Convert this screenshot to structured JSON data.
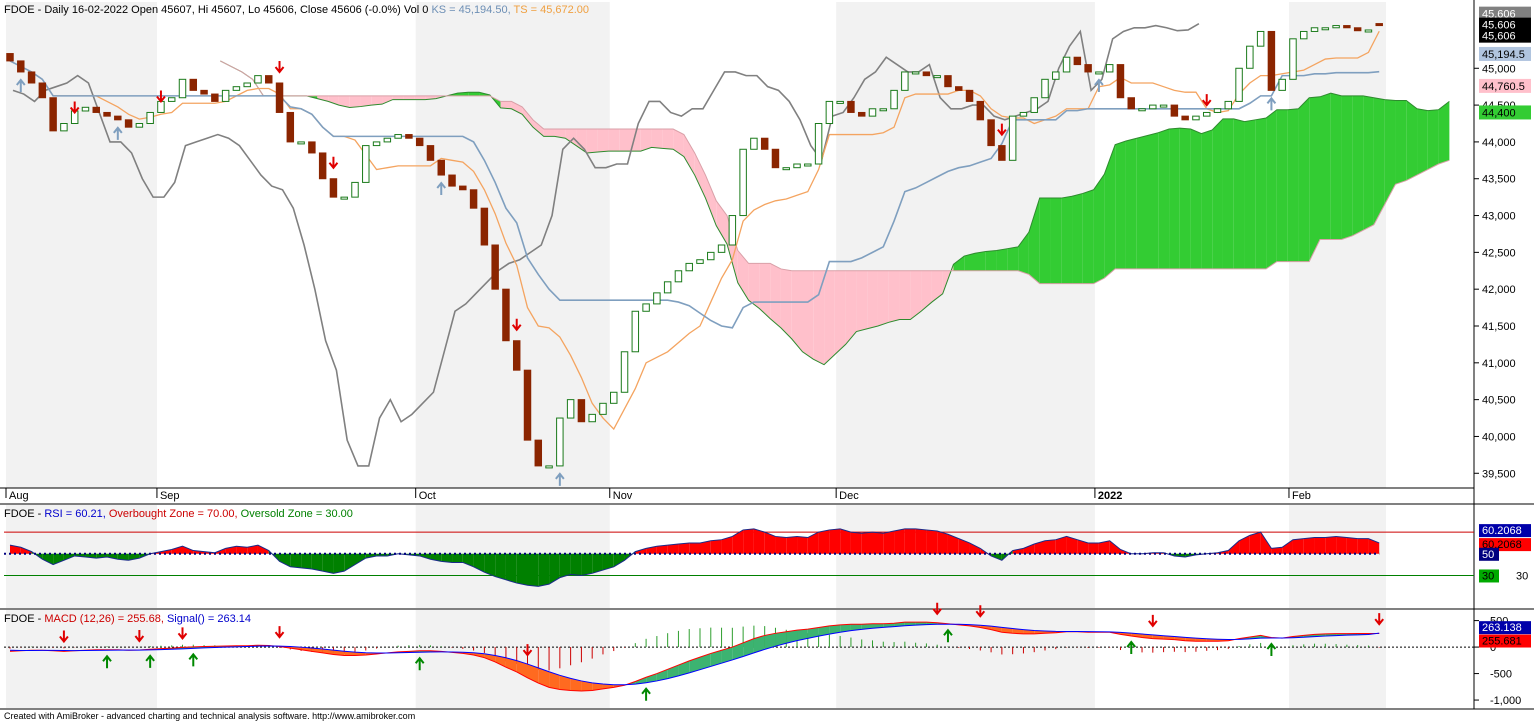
{
  "header": {
    "main": "FDOE - Daily 16-02-2022 Open 45607, Hi 45607, Lo 45606, Close 45606 (-0.0%) Vol 0",
    "ks": "KS = 45,194.50,",
    "ts": "TS = 45,672.00"
  },
  "rsi_header": {
    "prefix": "FDOE - ",
    "rsi": "RSI = 60.21,",
    "overbought": "Overbought Zone = 70.00,",
    "oversold": "Oversold Zone = 30.00"
  },
  "macd_header": {
    "prefix": "FDOE - ",
    "macd": "MACD (12,26) = 255.68,",
    "signal": "Signal() = 263.14"
  },
  "credit": "Created with AmiBroker - advanced charting and technical analysis software. http://www.amibroker.com",
  "colors": {
    "up_candle": "#ffffff",
    "down_candle": "#8b2500",
    "kumo_bull": "#33cc33",
    "kumo_bear": "#ffc0cb",
    "kijun": "#7f9fbf",
    "tenkan": "#f4a460",
    "chikou": "#808080",
    "rsi_fill_up": "#ff0000",
    "rsi_fill_down": "#008000",
    "macd_line": "#ff0000",
    "signal_line": "#0000ff"
  },
  "price_badges": [
    {
      "text": "45,606",
      "bg": "#808080"
    },
    {
      "text": "45,606",
      "bg": "#000000"
    },
    {
      "text": "45,606",
      "bg": "#000000"
    },
    {
      "text": "45,194.5",
      "bg": "#b0c4de"
    },
    {
      "text": "44,760.5",
      "bg": "#ffc0cb"
    },
    {
      "text": "44,400",
      "bg": "#33cc33"
    }
  ],
  "rsi_badges": [
    {
      "text": "60.2068",
      "bg": "#0000aa",
      "fg": "#ffffff"
    },
    {
      "text": "60.2068",
      "bg": "#ff0000",
      "fg": "#000000"
    },
    {
      "text": "50",
      "bg": "#000080",
      "fg": "#ffffff"
    },
    {
      "text": "30",
      "bg": "#00aa00",
      "fg": "#000000"
    }
  ],
  "macd_badges": [
    {
      "text": "263.138",
      "bg": "#0000aa",
      "fg": "#ffffff"
    },
    {
      "text": "255.681",
      "bg": "#ff0000",
      "fg": "#000000"
    }
  ],
  "chart_data": [
    {
      "type": "candlestick",
      "title": "FDOE - Daily 16-02-2022",
      "y_axis_ticks": [
        45000,
        44500,
        44000,
        43500,
        43000,
        42500,
        42000,
        41500,
        41000,
        40500,
        40000,
        39500
      ],
      "ylim": [
        39300,
        45900
      ],
      "x_axis_labels": [
        "Aug",
        "Sep",
        "Oct",
        "Nov",
        "Dec",
        "2022",
        "Feb"
      ],
      "close_series": [
        45100,
        44950,
        44800,
        44600,
        44150,
        44250,
        44420,
        44470,
        44400,
        44350,
        44300,
        44200,
        44250,
        44400,
        44550,
        44600,
        44850,
        44700,
        44650,
        44550,
        44700,
        44750,
        44800,
        44900,
        44800,
        44400,
        44000,
        44000,
        43850,
        43500,
        43250,
        43250,
        43450,
        43950,
        44000,
        44050,
        44100,
        44050,
        43950,
        43750,
        43550,
        43400,
        43350,
        43100,
        42600,
        42000,
        41300,
        40900,
        39950,
        39600,
        39600,
        40250,
        40500,
        40200,
        40300,
        40450,
        40600,
        41150,
        41700,
        41800,
        41950,
        42100,
        42250,
        42350,
        42400,
        42500,
        42600,
        43000,
        43900,
        44050,
        43900,
        43650,
        43650,
        43700,
        43700,
        44250,
        44550,
        44550,
        44400,
        44350,
        44450,
        44450,
        44700,
        44950,
        44950,
        44900,
        44900,
        44750,
        44700,
        44550,
        44300,
        43950,
        43750,
        44350,
        44400,
        44600,
        44850,
        44950,
        45150,
        45050,
        44950,
        44950,
        45050,
        44600,
        44450,
        44450,
        44500,
        44500,
        44350,
        44300,
        44350,
        44400,
        44450,
        44550,
        45000,
        45300,
        45500,
        44700,
        44850,
        45400,
        45500,
        45550,
        45550,
        45580,
        45550,
        45510,
        45520,
        45606
      ],
      "open_series": [
        45200,
        45100,
        44950,
        44800,
        44600,
        44150,
        44250,
        44420,
        44470,
        44400,
        44350,
        44300,
        44200,
        44250,
        44400,
        44550,
        44600,
        44850,
        44700,
        44650,
        44550,
        44700,
        44750,
        44800,
        44900,
        44800,
        44400,
        44000,
        44000,
        43850,
        43500,
        43250,
        43250,
        43450,
        43950,
        44000,
        44050,
        44100,
        44050,
        43950,
        43750,
        43550,
        43400,
        43350,
        43100,
        42600,
        42000,
        41300,
        40900,
        39950,
        39600,
        39600,
        40250,
        40500,
        40200,
        40300,
        40450,
        40600,
        41150,
        41700,
        41800,
        41950,
        42100,
        42250,
        42350,
        42400,
        42500,
        42600,
        43000,
        43900,
        44050,
        43900,
        43650,
        43650,
        43700,
        43700,
        44250,
        44550,
        44550,
        44400,
        44350,
        44450,
        44450,
        44700,
        44950,
        44950,
        44900,
        44900,
        44750,
        44700,
        44550,
        44300,
        43950,
        43750,
        44350,
        44400,
        44600,
        44850,
        44950,
        45150,
        45050,
        44950,
        44950,
        45050,
        44600,
        44450,
        44450,
        44500,
        44500,
        44350,
        44300,
        44350,
        44400,
        44450,
        44550,
        45000,
        45300,
        45500,
        44700,
        44850,
        45400,
        45500,
        45550,
        45550,
        45580,
        45550,
        45510,
        45607
      ],
      "tenkan_sen_last": 45672,
      "kijun_sen_last": 45194.5
    },
    {
      "type": "area",
      "title": "RSI",
      "rsi_last": 60.21,
      "overbought": 70,
      "oversold": 30,
      "y_ticks": [
        50,
        30
      ],
      "series": [
        {
          "name": "RSI",
          "values": [
            58,
            56,
            52,
            45,
            40,
            44,
            48,
            47,
            46,
            47,
            45,
            44,
            46,
            50,
            52,
            54,
            57,
            53,
            52,
            51,
            55,
            57,
            56,
            58,
            53,
            43,
            38,
            37,
            36,
            34,
            32,
            34,
            40,
            46,
            48,
            48,
            50,
            49,
            48,
            45,
            43,
            42,
            42,
            38,
            33,
            29,
            26,
            23,
            21,
            20,
            22,
            28,
            31,
            30,
            32,
            35,
            38,
            44,
            52,
            55,
            57,
            58,
            59,
            60,
            60,
            62,
            63,
            66,
            72,
            73,
            70,
            66,
            65,
            66,
            65,
            70,
            72,
            73,
            70,
            69,
            70,
            69,
            71,
            73,
            73,
            72,
            71,
            68,
            64,
            60,
            55,
            48,
            44,
            53,
            55,
            59,
            62,
            63,
            66,
            63,
            60,
            60,
            62,
            54,
            50,
            50,
            51,
            51,
            48,
            47,
            49,
            50,
            51,
            53,
            62,
            67,
            70,
            55,
            56,
            63,
            64,
            65,
            65,
            66,
            65,
            64,
            64,
            60
          ]
        }
      ]
    },
    {
      "type": "line",
      "title": "MACD (12,26)",
      "macd_last": 255.68,
      "signal_last": 263.14,
      "y_ticks": [
        500,
        0,
        -500,
        -1000
      ],
      "series": [
        {
          "name": "MACD (12,26)",
          "values": [
            -80,
            -70,
            -60,
            -60,
            -70,
            -80,
            -70,
            -60,
            -50,
            -50,
            -50,
            -60,
            -55,
            -40,
            -30,
            -20,
            -5,
            5,
            10,
            15,
            20,
            25,
            25,
            35,
            30,
            10,
            -20,
            -50,
            -80,
            -110,
            -140,
            -160,
            -160,
            -150,
            -130,
            -110,
            -90,
            -80,
            -70,
            -70,
            -80,
            -100,
            -120,
            -150,
            -200,
            -280,
            -380,
            -470,
            -580,
            -680,
            -760,
            -800,
            -820,
            -830,
            -820,
            -790,
            -760,
            -720,
            -650,
            -570,
            -500,
            -420,
            -340,
            -260,
            -190,
            -120,
            -60,
            0,
            80,
            160,
            220,
            260,
            290,
            320,
            340,
            370,
            400,
            420,
            430,
            430,
            440,
            440,
            450,
            470,
            470,
            470,
            460,
            440,
            420,
            400,
            370,
            330,
            280,
            260,
            250,
            250,
            260,
            270,
            290,
            290,
            280,
            280,
            280,
            240,
            210,
            180,
            160,
            150,
            140,
            120,
            110,
            110,
            110,
            120,
            160,
            190,
            220,
            180,
            170,
            200,
            220,
            240,
            250,
            255,
            255,
            256,
            256,
            256
          ]
        },
        {
          "name": "Signal()",
          "values": [
            -60,
            -65,
            -65,
            -62,
            -62,
            -65,
            -66,
            -65,
            -62,
            -60,
            -58,
            -58,
            -57,
            -53,
            -48,
            -42,
            -35,
            -25,
            -15,
            -8,
            0,
            5,
            10,
            17,
            20,
            18,
            10,
            -2,
            -18,
            -37,
            -58,
            -78,
            -95,
            -107,
            -112,
            -112,
            -108,
            -103,
            -97,
            -92,
            -90,
            -92,
            -97,
            -107,
            -126,
            -158,
            -202,
            -256,
            -321,
            -393,
            -466,
            -533,
            -591,
            -639,
            -675,
            -698,
            -710,
            -712,
            -700,
            -674,
            -639,
            -595,
            -544,
            -487,
            -427,
            -365,
            -304,
            -243,
            -178,
            -110,
            -44,
            17,
            72,
            121,
            165,
            206,
            245,
            280,
            310,
            334,
            355,
            372,
            387,
            402,
            415,
            424,
            430,
            432,
            430,
            424,
            413,
            396,
            373,
            350,
            330,
            314,
            303,
            296,
            295,
            294,
            291,
            289,
            287,
            277,
            264,
            247,
            230,
            214,
            199,
            183,
            169,
            157,
            148,
            142,
            146,
            155,
            168,
            171,
            171,
            177,
            186,
            197,
            208,
            217,
            225,
            231,
            237,
            263
          ]
        }
      ]
    }
  ]
}
